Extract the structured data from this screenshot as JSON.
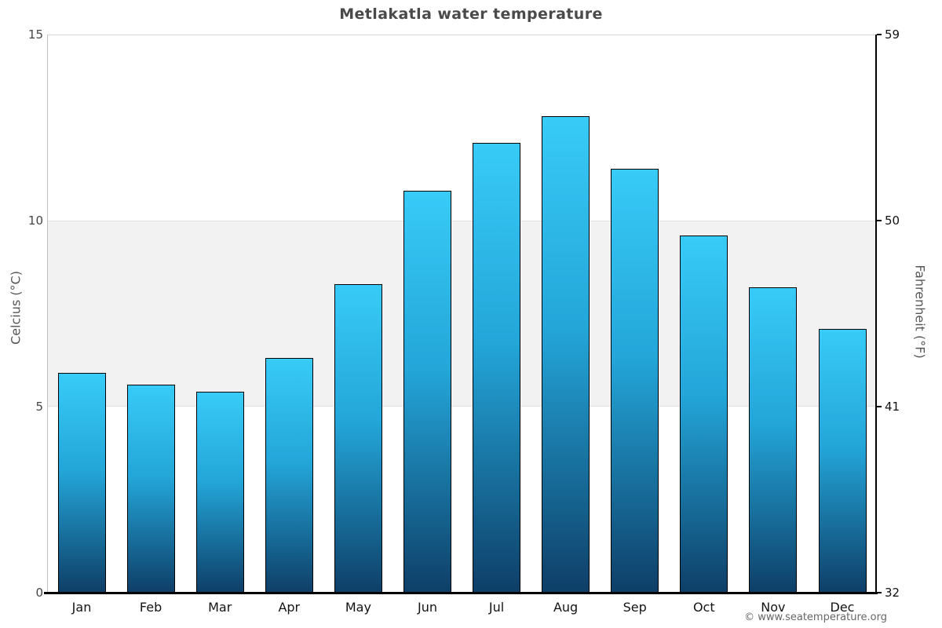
{
  "chart_data": {
    "type": "bar",
    "title": "Metlakatla water temperature",
    "categories": [
      "Jan",
      "Feb",
      "Mar",
      "Apr",
      "May",
      "Jun",
      "Jul",
      "Aug",
      "Sep",
      "Oct",
      "Nov",
      "Dec"
    ],
    "values": [
      5.9,
      5.6,
      5.4,
      6.3,
      8.3,
      10.8,
      12.1,
      12.8,
      11.4,
      9.6,
      8.2,
      7.1
    ],
    "unit": "°C",
    "ylabel_left": "Celcius (°C)",
    "ylabel_right": "Fahrenheit (°F)",
    "yticks_left": [
      15,
      10,
      5,
      0
    ],
    "yticks_right": [
      59,
      50,
      41,
      32
    ],
    "ylim": [
      0,
      15
    ],
    "grid": "horizontal band between 5 and 10, top gridline at 15",
    "legend": "none",
    "band": {
      "from": 5,
      "to": 10,
      "color": "#f2f2f2"
    },
    "colors": {
      "bar_top": "#38cbf8",
      "bar_mid": "#23a5d8",
      "bar_bottom": "#0e3f68",
      "bar_border": "#000000",
      "band_fill": "#f2f2f2",
      "title_text": "#4a4a4a"
    }
  },
  "footer": {
    "copyright": "© www.seatemperature.org"
  }
}
